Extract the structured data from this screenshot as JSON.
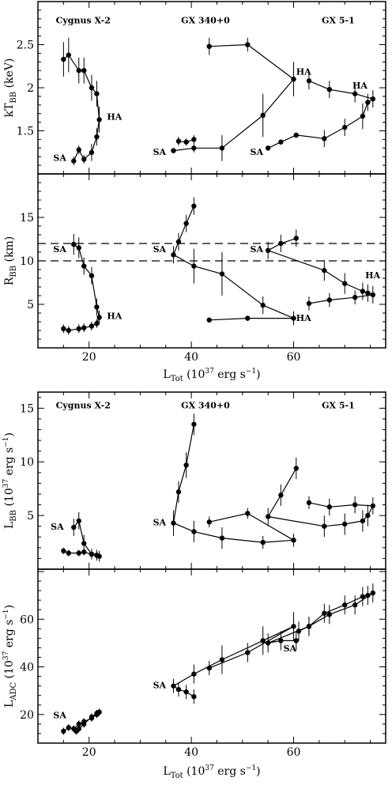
{
  "chart_data": [
    {
      "type": "scatter",
      "panel": "kT_BB",
      "ylabel_main": "kT",
      "ylabel_sub": "BB",
      "ylabel_tail": " (keV)",
      "xlim": [
        10,
        78
      ],
      "ylim": [
        1.0,
        3.0
      ],
      "yticks": [
        1.5,
        2,
        2.5
      ],
      "grid": false,
      "series": [
        {
          "group": "cyg",
          "x": [
            15,
            16,
            18,
            19,
            20.5,
            21.5,
            22,
            21.5,
            20.5,
            19,
            18,
            17
          ],
          "y": [
            2.33,
            2.38,
            2.2,
            2.2,
            2.0,
            1.93,
            1.63,
            1.43,
            1.25,
            1.17,
            1.28,
            1.15
          ],
          "yerr": [
            0.2,
            0.2,
            0.15,
            0.15,
            0.15,
            0.15,
            0.15,
            0.1,
            0.1,
            0.05,
            0.05,
            0.05
          ]
        },
        {
          "group": "gx340",
          "x": [
            43.5,
            51,
            60,
            54,
            46,
            40.5,
            36.5
          ],
          "y": [
            2.48,
            2.5,
            2.1,
            1.68,
            1.3,
            1.3,
            1.27
          ],
          "yerr": [
            0.1,
            0.08,
            0.2,
            0.25,
            0.15,
            0.05,
            0.03
          ]
        },
        {
          "group": "gx340",
          "x": [
            37.5,
            39,
            40.5
          ],
          "y": [
            1.38,
            1.37,
            1.4
          ],
          "yerr": [
            0.05,
            0.04,
            0.05
          ]
        },
        {
          "group": "gx51",
          "x": [
            63,
            67,
            72,
            75.5,
            74.5,
            73.5,
            70,
            66,
            60.5,
            57.5,
            55
          ],
          "y": [
            2.08,
            1.98,
            1.93,
            1.87,
            1.83,
            1.67,
            1.54,
            1.41,
            1.45,
            1.37,
            1.3
          ],
          "yerr": [
            0.1,
            0.1,
            0.1,
            0.1,
            0.1,
            0.15,
            0.1,
            0.1,
            0.03,
            0.03,
            0.03
          ]
        }
      ],
      "annotations": [
        {
          "text": "Cygnus X-2",
          "x": 13.5,
          "y": 2.75
        },
        {
          "text": "GX 340+0",
          "x": 38,
          "y": 2.75
        },
        {
          "text": "GX 5-1",
          "x": 65.5,
          "y": 2.75
        },
        {
          "text": "HA",
          "x": 23.5,
          "y": 1.63
        },
        {
          "text": "SA",
          "x": 13,
          "y": 1.15
        },
        {
          "text": "SA",
          "x": 32.5,
          "y": 1.22
        },
        {
          "text": "HA",
          "x": 60.5,
          "y": 2.15
        },
        {
          "text": "SA",
          "x": 51.5,
          "y": 1.22
        },
        {
          "text": "HA",
          "x": 71.5,
          "y": 1.99
        }
      ]
    },
    {
      "type": "scatter",
      "panel": "R_BB",
      "ylabel_main": "R",
      "ylabel_sub": "BB",
      "ylabel_tail": " (km)",
      "xlim": [
        10,
        78
      ],
      "ylim": [
        0,
        20
      ],
      "yticks": [
        5,
        10,
        15
      ],
      "grid": false,
      "hlines": [
        10,
        12
      ],
      "series": [
        {
          "group": "cyg",
          "x": [
            15,
            16,
            18,
            19,
            20.5,
            21.5,
            22,
            21.5,
            20.5,
            19,
            18,
            17
          ],
          "y": [
            2.2,
            2.0,
            2.2,
            2.3,
            2.5,
            2.8,
            3.5,
            4.7,
            8.3,
            9.4,
            11.5,
            11.9
          ],
          "yerr": [
            0.5,
            0.5,
            0.5,
            0.5,
            0.5,
            0.5,
            0.8,
            1.0,
            1.0,
            1.0,
            1.2,
            1.2
          ]
        },
        {
          "group": "gx340",
          "x": [
            43.5,
            51,
            60,
            54,
            46,
            40.5,
            36.5,
            37.5,
            39,
            40.5
          ],
          "y": [
            3.2,
            3.4,
            3.4,
            4.9,
            8.5,
            9.4,
            10.7,
            12.2,
            14.3,
            16.3
          ],
          "yerr": [
            0.3,
            0.3,
            0.8,
            1.0,
            2.5,
            2.0,
            1.0,
            1.0,
            1.0,
            1.0
          ]
        },
        {
          "group": "gx51",
          "x": [
            60.5,
            57.5,
            55,
            66,
            70,
            73.5,
            74.5,
            75.5,
            72,
            67,
            63
          ],
          "y": [
            12.6,
            12.0,
            11.2,
            8.9,
            7.4,
            6.5,
            6.3,
            6.1,
            5.8,
            5.5,
            5.1
          ],
          "yerr": [
            1.0,
            1.0,
            1.0,
            1.2,
            1.2,
            1.0,
            1.0,
            1.0,
            0.8,
            0.8,
            0.8
          ]
        }
      ],
      "annotations": [
        {
          "text": "SA",
          "x": 13,
          "y": 11.0
        },
        {
          "text": "HA",
          "x": 23.5,
          "y": 3.3
        },
        {
          "text": "SA",
          "x": 32.5,
          "y": 11.0
        },
        {
          "text": "SA",
          "x": 51.5,
          "y": 11.0
        },
        {
          "text": "HA",
          "x": 60.5,
          "y": 3.1
        },
        {
          "text": "HA",
          "x": 74,
          "y": 8.0
        }
      ]
    },
    {
      "type": "scatter",
      "panel": "L_BB",
      "ylabel_main": "L",
      "ylabel_sub": "BB",
      "ylabel_tail": " (10",
      "ylabel_exp": "37",
      "ylabel_unit": " erg s",
      "ylabel_unit_exp": "−1",
      "ylabel_close": ")",
      "xlim": [
        10,
        78
      ],
      "ylim": [
        0,
        16.5
      ],
      "yticks": [
        5,
        10,
        15
      ],
      "grid": false,
      "series": [
        {
          "group": "cyg",
          "x": [
            15,
            16,
            18,
            19,
            20.5,
            21.5,
            22,
            21.5,
            20.5,
            19,
            18,
            17
          ],
          "y": [
            1.7,
            1.5,
            1.5,
            1.6,
            1.4,
            1.3,
            1.2,
            1.3,
            1.4,
            2.4,
            4.5,
            3.9
          ],
          "yerr": [
            0.3,
            0.3,
            0.3,
            0.3,
            0.3,
            0.3,
            0.5,
            0.5,
            0.5,
            0.8,
            0.8,
            0.8
          ]
        },
        {
          "group": "gx340",
          "x": [
            43.5,
            51,
            60,
            54,
            46,
            40.5,
            36.5,
            37.5,
            39,
            40.5
          ],
          "y": [
            4.4,
            5.2,
            2.7,
            2.5,
            2.9,
            3.5,
            4.3,
            7.2,
            9.7,
            13.5
          ],
          "yerr": [
            0.5,
            0.5,
            0.6,
            0.6,
            1.0,
            1.0,
            1.2,
            1.0,
            1.2,
            1.0
          ]
        },
        {
          "group": "gx51",
          "x": [
            60.5,
            57.5,
            55,
            66,
            70,
            73.5,
            74.5,
            75.5,
            72,
            67,
            63
          ],
          "y": [
            9.4,
            6.9,
            4.9,
            4.0,
            4.2,
            4.5,
            5.0,
            5.9,
            6.0,
            5.8,
            6.2
          ],
          "yerr": [
            1.0,
            1.0,
            0.8,
            1.0,
            1.0,
            1.0,
            1.0,
            0.8,
            0.8,
            0.8,
            0.6
          ]
        }
      ],
      "annotations": [
        {
          "text": "Cygnus X-2",
          "x": 13.5,
          "y": 15.0
        },
        {
          "text": "GX 340+0",
          "x": 38,
          "y": 15.0
        },
        {
          "text": "GX 5-1",
          "x": 65.5,
          "y": 15.0
        },
        {
          "text": "SA",
          "x": 12.5,
          "y": 3.7
        },
        {
          "text": "SA",
          "x": 32.5,
          "y": 4.1
        }
      ]
    },
    {
      "type": "scatter",
      "panel": "L_ADC",
      "ylabel_main": "L",
      "ylabel_sub": "ADC",
      "ylabel_tail": " (10",
      "ylabel_exp": "37",
      "ylabel_unit": " erg s",
      "ylabel_unit_exp": "−1",
      "ylabel_close": ")",
      "xlim": [
        10,
        78
      ],
      "ylim": [
        8,
        81
      ],
      "yticks": [
        20,
        40,
        60
      ],
      "grid": false,
      "series": [
        {
          "group": "cyg",
          "x": [
            15,
            16,
            17,
            18,
            19,
            20.5,
            21.5,
            22,
            21.5,
            20.5,
            19,
            18,
            17.5
          ],
          "y": [
            13,
            14.5,
            14,
            16,
            17,
            18.5,
            20,
            21,
            20.5,
            19,
            16,
            14,
            13
          ],
          "yerr": [
            1.5,
            1.5,
            1.5,
            1.5,
            1.5,
            1.5,
            1.5,
            1.5,
            1.5,
            1.5,
            1.5,
            1.5,
            1.5
          ]
        },
        {
          "group": "gx340",
          "x": [
            40.5,
            39,
            37.5,
            36.5,
            40.5,
            46,
            54,
            60,
            51,
            43.5
          ],
          "y": [
            27.5,
            29.5,
            30.5,
            32,
            37,
            43,
            51,
            57,
            46,
            39.5
          ],
          "yerr": [
            3,
            3,
            3,
            3,
            4,
            6,
            6,
            6,
            4,
            3
          ]
        },
        {
          "group": "gx51",
          "x": [
            60.5,
            57.5,
            55,
            63,
            67,
            72,
            75.5,
            74.5,
            73.5,
            70,
            66,
            63,
            61
          ],
          "y": [
            51,
            51,
            50,
            57,
            62,
            66,
            71,
            70,
            69.5,
            66,
            62.5,
            57,
            55
          ],
          "yerr": [
            4,
            4,
            4,
            4,
            4,
            4,
            4,
            4,
            4,
            4,
            4,
            4,
            4
          ]
        }
      ],
      "annotations": [
        {
          "text": "SA",
          "x": 13,
          "y": 18.5
        },
        {
          "text": "SA",
          "x": 32.5,
          "y": 31.0
        },
        {
          "text": "SA",
          "x": 58,
          "y": 46.5
        }
      ]
    }
  ],
  "xaxis": {
    "ticks": [
      20,
      40,
      60
    ],
    "label_main": "L",
    "label_sub": "Tot",
    "label_tail": " (10",
    "label_exp": "37",
    "label_unit": " erg s",
    "label_unit_exp": "−1",
    "label_close": ")"
  }
}
